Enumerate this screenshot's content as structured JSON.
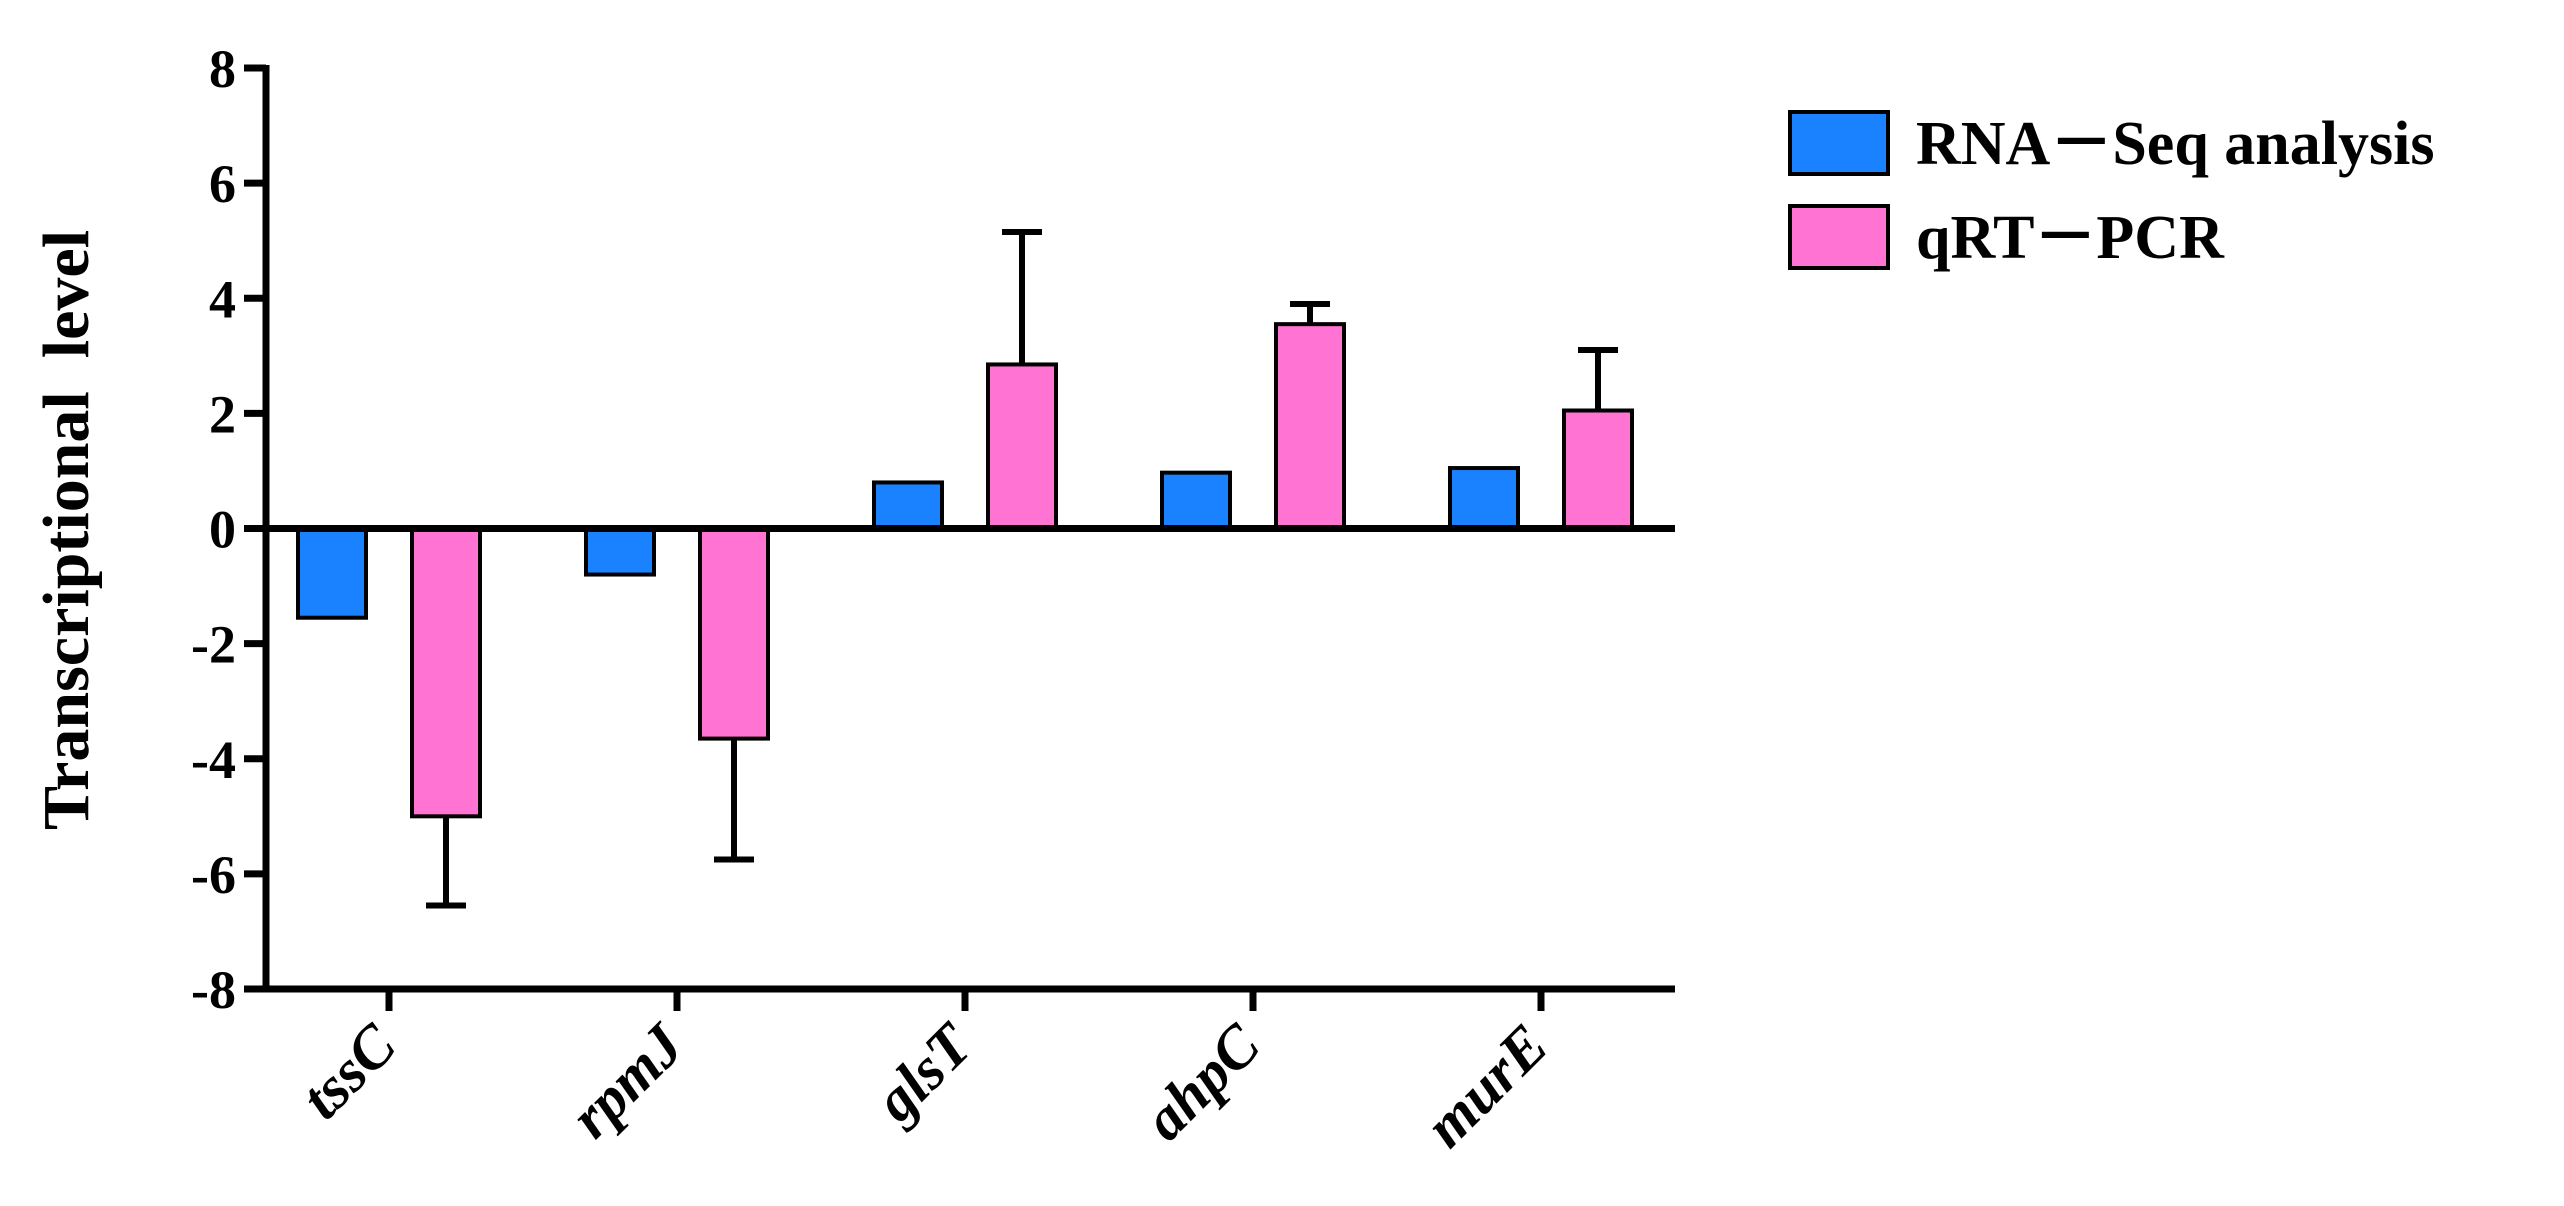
{
  "chart_data": {
    "type": "bar",
    "title": "",
    "xlabel": "",
    "ylabel": "Transcriptional  level",
    "ylim": [
      -8,
      8
    ],
    "yticks": [
      8,
      6,
      4,
      2,
      0,
      -2,
      -4,
      -6,
      -8
    ],
    "categories": [
      "tssC",
      "rpmJ",
      "glsT",
      "ahpC",
      "murE"
    ],
    "series": [
      {
        "name": "RNA－Seq analysis",
        "color": "#1a82ff",
        "values": [
          -1.55,
          -0.8,
          0.8,
          0.97,
          1.05
        ],
        "errors": [
          0,
          0,
          0,
          0,
          0
        ]
      },
      {
        "name": "qRT－PCR",
        "color": "#ff73d2",
        "values": [
          -5.0,
          -3.65,
          2.85,
          3.55,
          2.05
        ],
        "errors": [
          1.55,
          2.1,
          2.3,
          0.35,
          1.05
        ]
      }
    ],
    "legend_position": "top-right",
    "grid": false
  }
}
